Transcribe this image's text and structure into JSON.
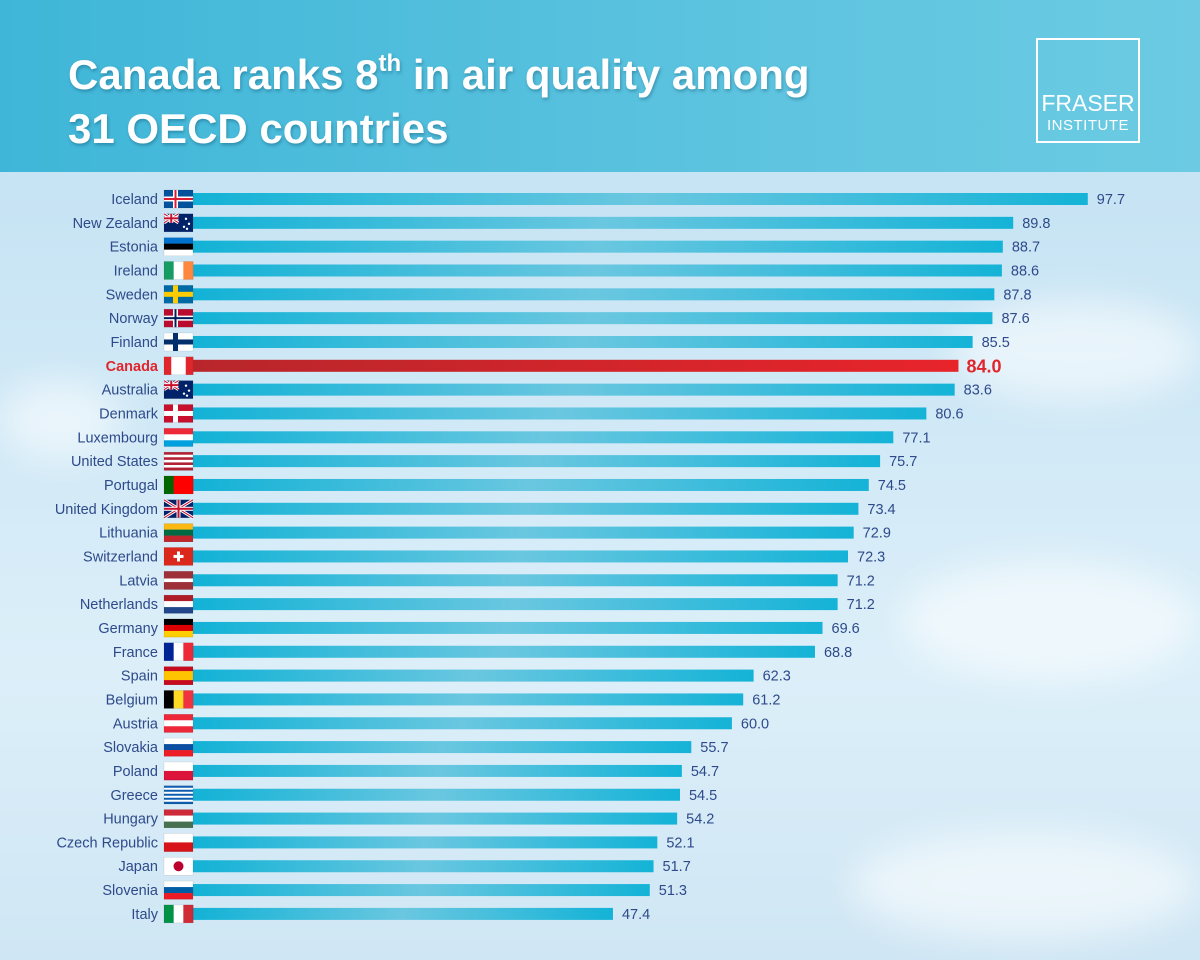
{
  "header": {
    "title_a": "Canada ranks 8",
    "title_sup": "th",
    "title_b": " in air quality among",
    "title_line2": "31 OECD countries",
    "logo_line1": "FRASER",
    "logo_line2": "INSTITUTE"
  },
  "colors": {
    "bar": "#16b4d8",
    "highlight": "#e0262c",
    "label": "#2e4a8a",
    "header": "#4bbad9"
  },
  "chart_data": {
    "type": "bar",
    "orientation": "horizontal",
    "title": "Canada ranks 8th in air quality among 31 OECD countries",
    "xlabel": "",
    "ylabel": "",
    "highlight": "Canada",
    "categories": [
      "Iceland",
      "New Zealand",
      "Estonia",
      "Ireland",
      "Sweden",
      "Norway",
      "Finland",
      "Canada",
      "Australia",
      "Denmark",
      "Luxembourg",
      "United States",
      "Portugal",
      "United Kingdom",
      "Lithuania",
      "Switzerland",
      "Latvia",
      "Netherlands",
      "Germany",
      "France",
      "Spain",
      "Belgium",
      "Austria",
      "Slovakia",
      "Poland",
      "Greece",
      "Hungary",
      "Czech Republic",
      "Japan",
      "Slovenia",
      "Italy"
    ],
    "values": [
      97.7,
      89.8,
      88.7,
      88.6,
      87.8,
      87.6,
      85.5,
      84.0,
      83.6,
      80.6,
      77.1,
      75.7,
      74.5,
      73.4,
      72.9,
      72.3,
      71.2,
      71.2,
      69.6,
      68.8,
      62.3,
      61.2,
      60.0,
      55.7,
      54.7,
      54.5,
      54.2,
      52.1,
      51.7,
      51.3,
      47.4
    ]
  }
}
